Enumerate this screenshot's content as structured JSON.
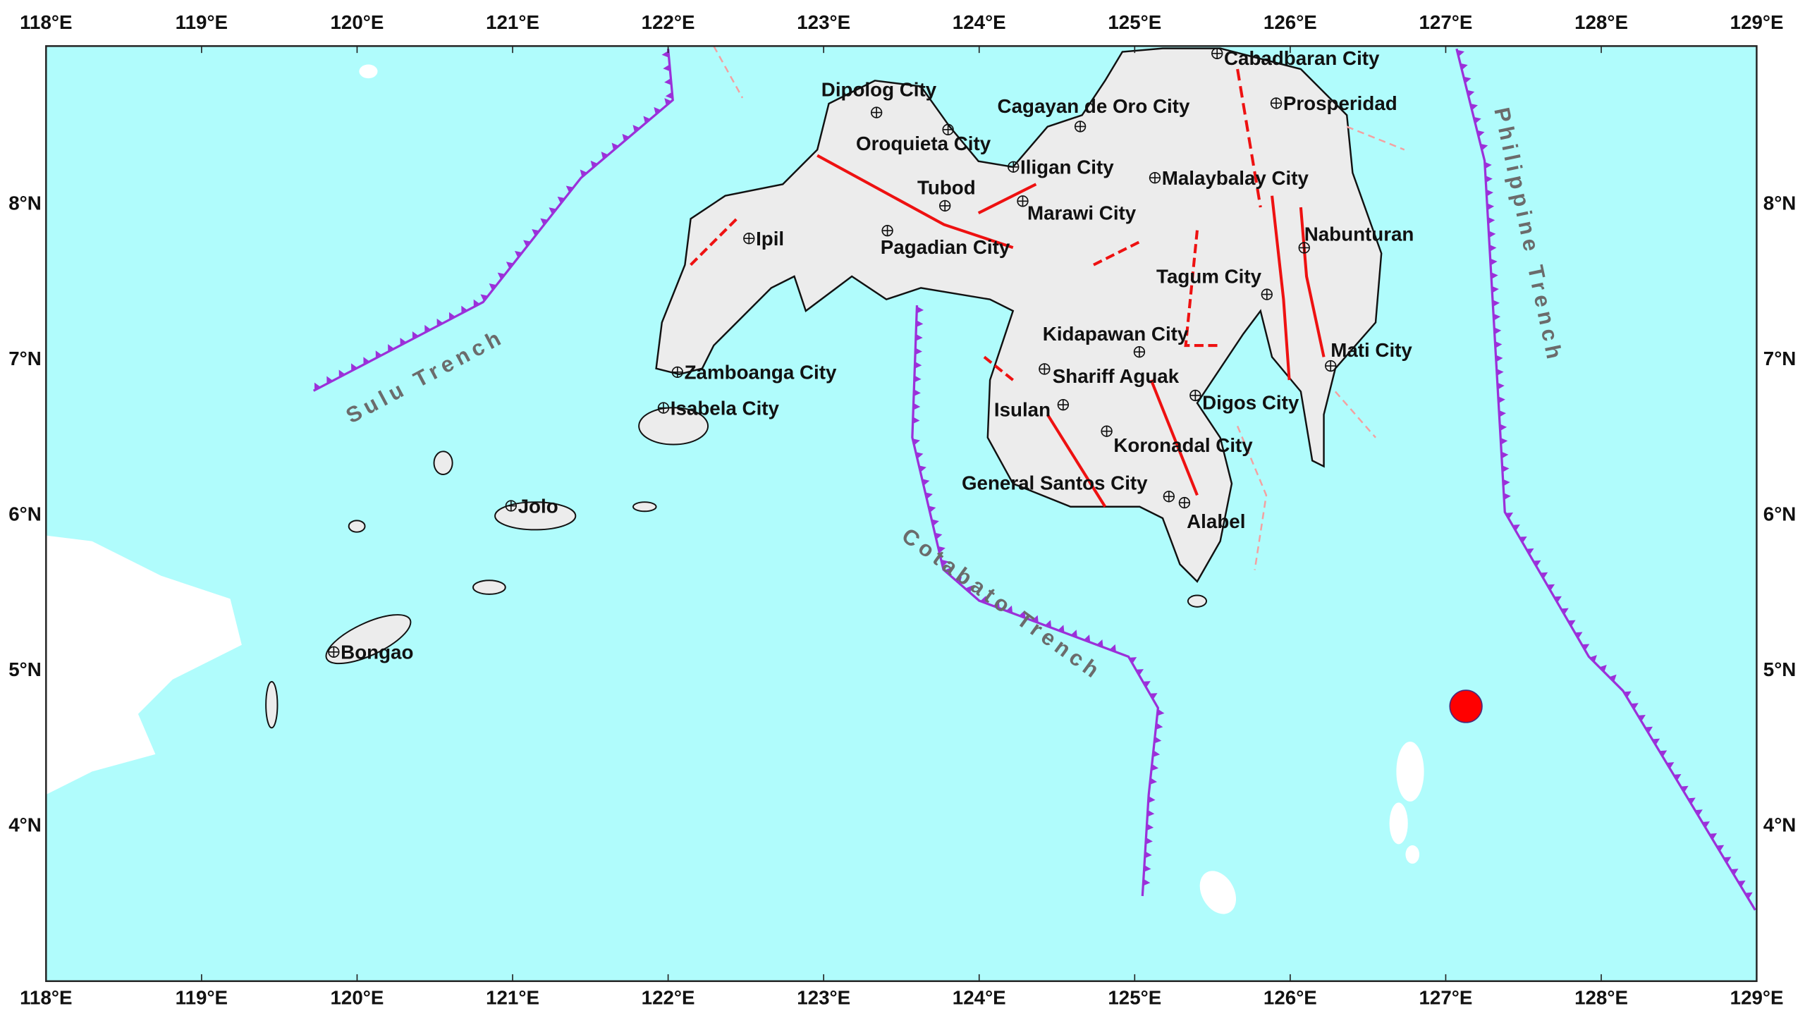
{
  "map": {
    "extent": {
      "lon": [
        118,
        129
      ],
      "lat": [
        3,
        9
      ]
    },
    "colors": {
      "sea": "#b0fcfc",
      "land": "#efefef",
      "fault": "#ee1111",
      "trench": "#9b30d9",
      "epicenter": "#ff0000"
    },
    "lon_ticks": [
      "118°E",
      "119°E",
      "120°E",
      "121°E",
      "122°E",
      "123°E",
      "124°E",
      "125°E",
      "126°E",
      "127°E",
      "128°E",
      "129°E"
    ],
    "lat_ticks": [
      "4°N",
      "5°N",
      "6°N",
      "7°N",
      "8°N"
    ],
    "epicenter": {
      "lon": 127.13,
      "lat": 4.76
    },
    "cities": [
      {
        "name": "Cabadbaran City",
        "lon": 125.53,
        "lat": 8.96
      },
      {
        "name": "Prosperidad",
        "lon": 125.91,
        "lat": 8.64
      },
      {
        "name": "Dipolog City",
        "lon": 123.34,
        "lat": 8.58
      },
      {
        "name": "Cagayan de Oro City",
        "lon": 124.65,
        "lat": 8.49
      },
      {
        "name": "Oroquieta City",
        "lon": 123.8,
        "lat": 8.47
      },
      {
        "name": "Iligan City",
        "lon": 124.22,
        "lat": 8.23
      },
      {
        "name": "Malaybalay City",
        "lon": 125.13,
        "lat": 8.16
      },
      {
        "name": "Tubod",
        "lon": 123.78,
        "lat": 7.98
      },
      {
        "name": "Marawi City",
        "lon": 124.28,
        "lat": 8.01
      },
      {
        "name": "Ipil",
        "lon": 122.52,
        "lat": 7.77
      },
      {
        "name": "Pagadian City",
        "lon": 123.41,
        "lat": 7.82
      },
      {
        "name": "Nabunturan",
        "lon": 126.09,
        "lat": 7.71
      },
      {
        "name": "Tagum City",
        "lon": 125.85,
        "lat": 7.41
      },
      {
        "name": "Kidapawan City",
        "lon": 125.03,
        "lat": 7.04
      },
      {
        "name": "Zamboanga City",
        "lon": 122.06,
        "lat": 6.91
      },
      {
        "name": "Shariff Aguak",
        "lon": 124.42,
        "lat": 6.93
      },
      {
        "name": "Mati City",
        "lon": 126.26,
        "lat": 6.95
      },
      {
        "name": "Isabela City",
        "lon": 121.97,
        "lat": 6.68
      },
      {
        "name": "Digos City",
        "lon": 125.39,
        "lat": 6.76
      },
      {
        "name": "Isulan",
        "lon": 124.54,
        "lat": 6.7
      },
      {
        "name": "Koronadal City",
        "lon": 124.82,
        "lat": 6.53
      },
      {
        "name": "General Santos City",
        "lon": 125.22,
        "lat": 6.11
      },
      {
        "name": "Jolo",
        "lon": 120.99,
        "lat": 6.05
      },
      {
        "name": "Alabel",
        "lon": 125.32,
        "lat": 6.07
      },
      {
        "name": "Bongao",
        "lon": 119.85,
        "lat": 5.11
      }
    ],
    "trenches": [
      {
        "name": "Sulu Trench",
        "path": [
          [
            119.72,
            6.79
          ],
          [
            120.81,
            7.36
          ],
          [
            121.44,
            8.16
          ],
          [
            122.03,
            8.66
          ],
          [
            122.0,
            8.99
          ]
        ]
      },
      {
        "name": "Cotabato Trench",
        "path": [
          [
            123.6,
            7.34
          ],
          [
            123.57,
            6.49
          ],
          [
            123.77,
            5.64
          ],
          [
            124.0,
            5.44
          ],
          [
            124.96,
            5.08
          ],
          [
            125.15,
            4.75
          ],
          [
            125.09,
            4.19
          ],
          [
            125.05,
            3.54
          ]
        ]
      },
      {
        "name": "Philippine Trench",
        "path": [
          [
            127.07,
            8.99
          ],
          [
            127.25,
            8.27
          ],
          [
            127.38,
            6.01
          ],
          [
            127.92,
            5.08
          ],
          [
            128.14,
            4.86
          ],
          [
            128.99,
            3.45
          ]
        ]
      }
    ]
  }
}
